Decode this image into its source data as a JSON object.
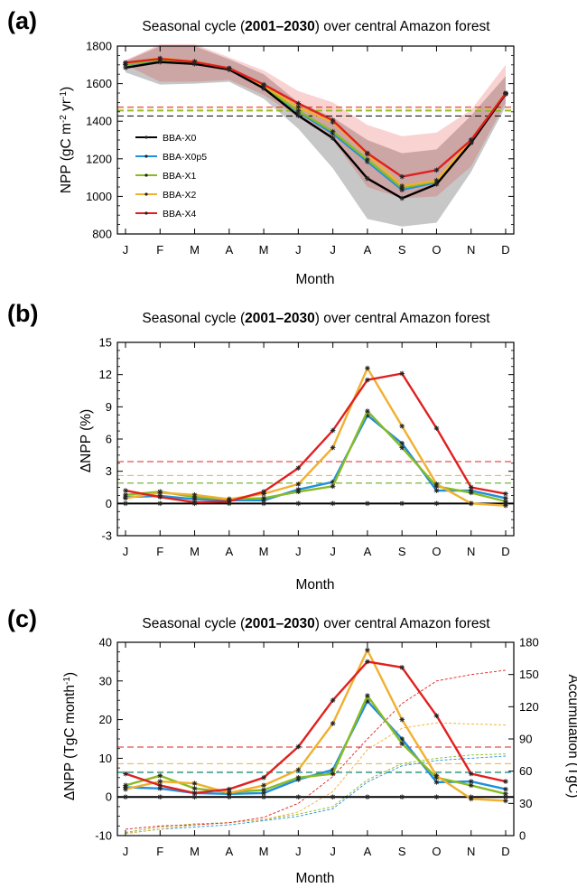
{
  "figure": {
    "panels": [
      {
        "label": "(a)",
        "title_pre": "Seasonal cycle (",
        "title_bold": "2001–2030",
        "title_post": ") over central Amazon forest",
        "ylabel_main": "NPP (gC m",
        "ylabel_sup1": "-2",
        "ylabel_mid": " yr",
        "ylabel_sup2": "-1",
        "ylabel_end": ")",
        "xlabel": "Month"
      },
      {
        "label": "(b)",
        "title_pre": "Seasonal cycle (",
        "title_bold": "2001–2030",
        "title_post": ")  over central Amazon forest",
        "ylabel": "ΔNPP (%)",
        "xlabel": "Month"
      },
      {
        "label": "(c)",
        "title_pre": "Seasonal cycle  (",
        "title_bold": "2001–2030",
        "title_post": ") over central Amazon forest",
        "ylabel_main": "ΔNPP (TgC month",
        "ylabel_sup": "-1",
        "ylabel_end": ")",
        "ylabel_right": "Accumulation (TgC)",
        "xlabel": "Month"
      }
    ]
  },
  "chart_data": [
    {
      "type": "line",
      "panel": "a",
      "categories": [
        "J",
        "F",
        "M",
        "A",
        "M",
        "J",
        "J",
        "A",
        "S",
        "O",
        "N",
        "D"
      ],
      "ylim": [
        800,
        1800
      ],
      "yticks": [
        800,
        1000,
        1200,
        1400,
        1600,
        1800
      ],
      "legend_position": "middle-left",
      "series": [
        {
          "name": "BBA-X0",
          "color": "#000000",
          "values": [
            1685,
            1715,
            1705,
            1675,
            1575,
            1430,
            1310,
            1095,
            990,
            1065,
            1285,
            1545
          ],
          "mean": 1428,
          "band_lower": [
            1660,
            1595,
            1600,
            1610,
            1520,
            1360,
            1150,
            880,
            840,
            860,
            1130,
            1480
          ],
          "band_upper": [
            1720,
            1800,
            1800,
            1730,
            1650,
            1500,
            1420,
            1300,
            1230,
            1250,
            1430,
            1640
          ]
        },
        {
          "name": "BBA-X0p5",
          "color": "#1f8fe0",
          "values": [
            1700,
            1725,
            1712,
            1680,
            1580,
            1450,
            1335,
            1185,
            1035,
            1075,
            1290,
            1545
          ],
          "mean": 1455
        },
        {
          "name": "BBA-X1",
          "color": "#88bb22",
          "values": [
            1702,
            1728,
            1714,
            1680,
            1582,
            1455,
            1345,
            1195,
            1045,
            1080,
            1292,
            1546
          ],
          "mean": 1456
        },
        {
          "name": "BBA-X2",
          "color": "#f0b030",
          "values": [
            1710,
            1735,
            1718,
            1682,
            1590,
            1475,
            1395,
            1225,
            1055,
            1085,
            1300,
            1550
          ],
          "mean": 1463
        },
        {
          "name": "BBA-X4",
          "color": "#e02020",
          "values": [
            1712,
            1732,
            1716,
            1682,
            1595,
            1495,
            1405,
            1230,
            1105,
            1140,
            1300,
            1548
          ],
          "mean": 1475,
          "band_lower": [
            1700,
            1610,
            1610,
            1620,
            1540,
            1420,
            1300,
            1050,
            990,
            1000,
            1160,
            1500
          ],
          "band_upper": [
            1725,
            1810,
            1810,
            1740,
            1670,
            1560,
            1500,
            1380,
            1320,
            1340,
            1460,
            1700
          ]
        }
      ]
    },
    {
      "type": "line",
      "panel": "b",
      "categories": [
        "J",
        "F",
        "M",
        "A",
        "M",
        "J",
        "J",
        "A",
        "S",
        "O",
        "N",
        "D"
      ],
      "ylim": [
        -3,
        15
      ],
      "yticks": [
        -3,
        0,
        3,
        6,
        9,
        12,
        15
      ],
      "series": [
        {
          "name": "BBA-X0",
          "color": "#000000",
          "values": [
            0,
            0,
            0,
            0,
            0,
            0,
            0,
            0,
            0,
            0,
            0,
            0
          ],
          "mean": 0
        },
        {
          "name": "BBA-X0p5",
          "color": "#1f8fe0",
          "values": [
            0.6,
            0.7,
            0.4,
            0.3,
            0.3,
            1.3,
            2.0,
            8.2,
            5.6,
            1.2,
            1.2,
            0.5
          ],
          "mean": 1.9
        },
        {
          "name": "BBA-X1",
          "color": "#88bb22",
          "values": [
            0.8,
            1.1,
            0.6,
            0.4,
            0.5,
            1.1,
            1.6,
            8.6,
            5.2,
            1.6,
            1.0,
            0.2
          ],
          "mean": 1.9
        },
        {
          "name": "BBA-X2",
          "color": "#f0b030",
          "values": [
            0.5,
            1.0,
            0.8,
            0.4,
            0.9,
            1.8,
            5.2,
            12.6,
            7.2,
            1.8,
            0.0,
            -0.2
          ],
          "mean": 2.6
        },
        {
          "name": "BBA-X4",
          "color": "#e02020",
          "values": [
            1.2,
            0.6,
            0.1,
            0.2,
            1.1,
            3.3,
            6.8,
            11.5,
            12.1,
            7.0,
            1.5,
            0.9
          ],
          "mean": 3.9
        }
      ]
    },
    {
      "type": "line",
      "panel": "c",
      "categories": [
        "J",
        "F",
        "M",
        "A",
        "M",
        "J",
        "J",
        "A",
        "S",
        "O",
        "N",
        "D"
      ],
      "ylim": [
        -10,
        40
      ],
      "yticks": [
        -10,
        0,
        10,
        20,
        30,
        40
      ],
      "y2lim": [
        0,
        180
      ],
      "y2ticks": [
        0,
        30,
        60,
        90,
        120,
        150,
        180
      ],
      "series": [
        {
          "name": "BBA-X0",
          "color": "#000000",
          "values": [
            0,
            0,
            0,
            0,
            0,
            0,
            0,
            0,
            0,
            0,
            0,
            0
          ],
          "mean": 0
        },
        {
          "name": "BBA-X0p5",
          "color": "#1f8fe0",
          "values": [
            2.5,
            2.2,
            1.0,
            0.8,
            1.0,
            4.5,
            7.0,
            24.8,
            15.0,
            3.8,
            4.0,
            2.0
          ],
          "mean": 6.3,
          "accumulation": [
            2,
            6,
            8,
            10,
            14,
            18,
            25,
            50,
            65,
            70,
            72,
            74
          ]
        },
        {
          "name": "BBA-X1",
          "color": "#88bb22",
          "values": [
            3.0,
            5.5,
            2.2,
            1.2,
            1.8,
            5.0,
            6.0,
            26.2,
            13.8,
            5.0,
            3.0,
            0.8
          ],
          "mean": 6.5,
          "accumulation": [
            3,
            8,
            11,
            12,
            15,
            20,
            27,
            52,
            67,
            72,
            75,
            76
          ]
        },
        {
          "name": "BBA-X2",
          "color": "#f0b030",
          "values": [
            2.0,
            4.0,
            3.5,
            1.0,
            3.0,
            7.0,
            19.0,
            38.0,
            20.0,
            5.5,
            -0.5,
            -1.0
          ],
          "mean": 8.6,
          "accumulation": [
            2,
            6,
            10,
            12,
            15,
            22,
            41,
            80,
            100,
            105,
            104,
            103
          ]
        },
        {
          "name": "BBA-X4",
          "color": "#e02020",
          "values": [
            6.0,
            3.0,
            1.0,
            2.0,
            5.0,
            13.0,
            25.0,
            35.0,
            33.5,
            21.0,
            6.0,
            4.0
          ],
          "mean": 12.9,
          "accumulation": [
            6,
            9,
            10,
            12,
            17,
            30,
            55,
            90,
            123,
            144,
            150,
            154
          ]
        }
      ]
    }
  ]
}
